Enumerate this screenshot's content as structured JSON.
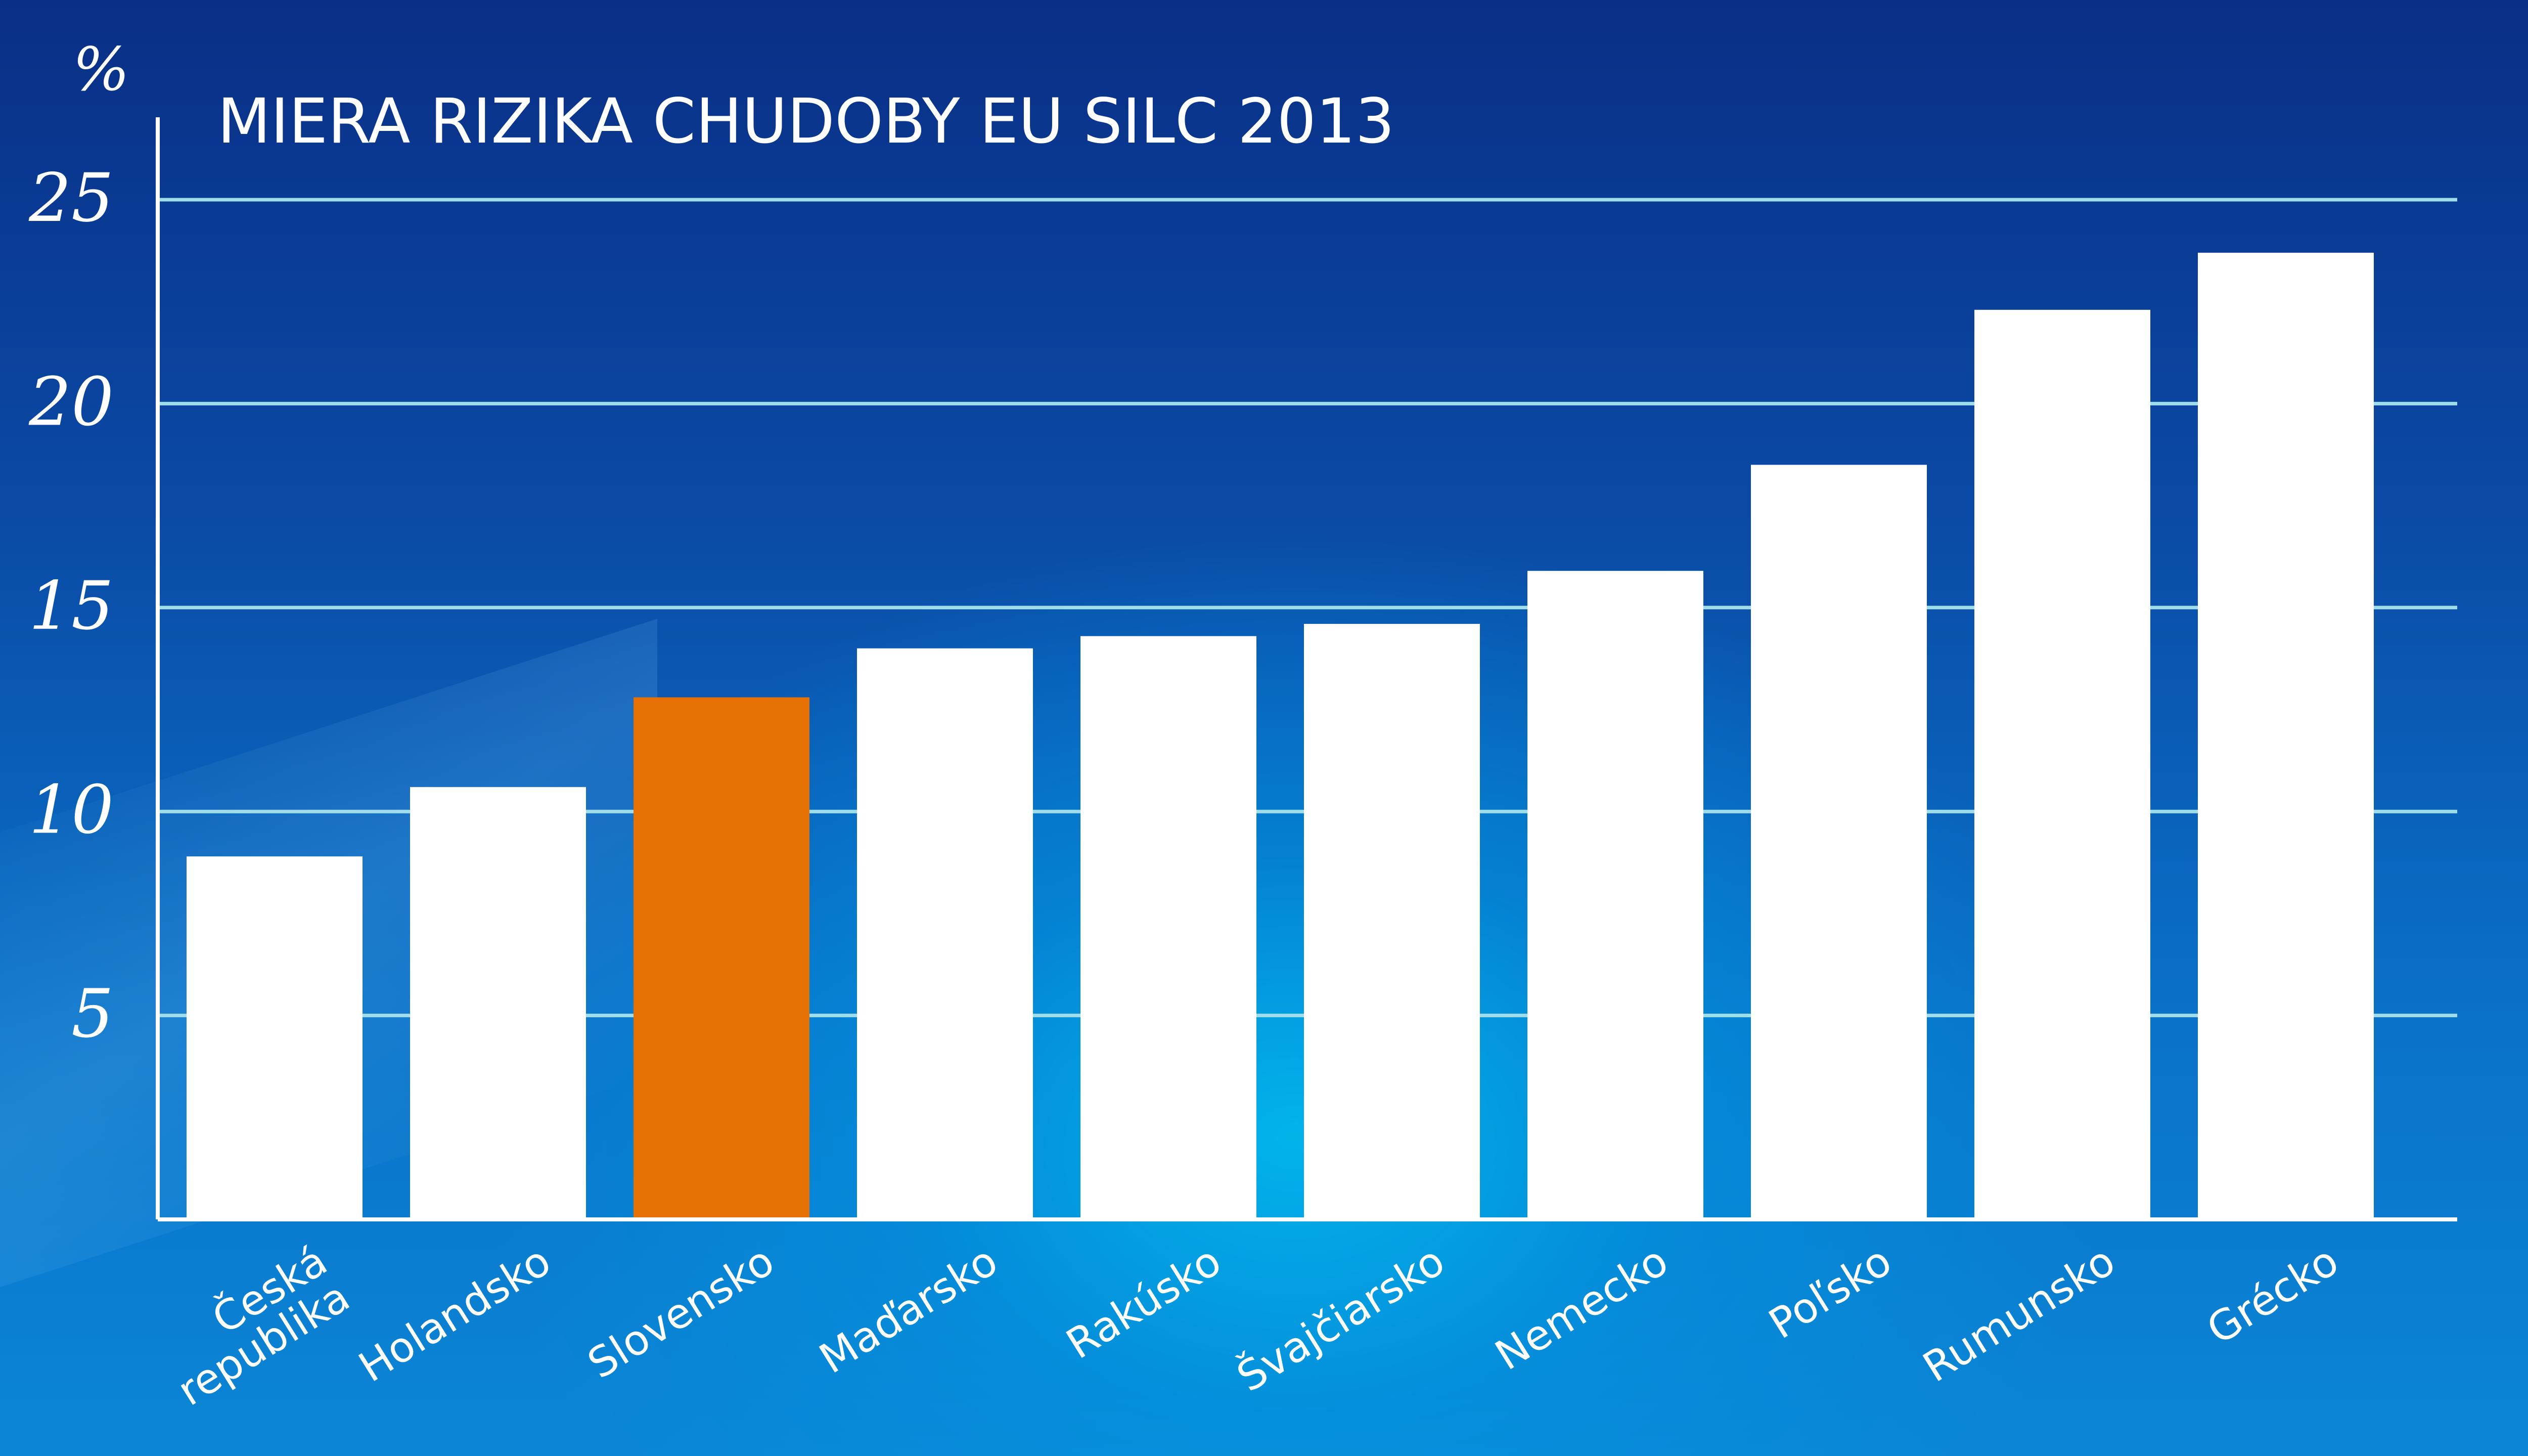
{
  "chart_data": {
    "type": "bar",
    "title": "MIERA RIZIKA CHUDOBY EU SILC 2013",
    "ylabel": "%",
    "xlabel": "",
    "ylim": [
      0,
      25
    ],
    "yticks": [
      "5",
      "10",
      "15",
      "20",
      "25"
    ],
    "ytick_values": [
      5,
      10,
      15,
      20,
      25
    ],
    "grid": true,
    "categories": [
      [
        "Česká",
        "republika"
      ],
      [
        "Holandsko"
      ],
      [
        "Slovensko"
      ],
      [
        "Maďarsko"
      ],
      [
        "Rakúsko"
      ],
      [
        "Švajčiarsko"
      ],
      [
        "Nemecko"
      ],
      [
        "Poľsko"
      ],
      [
        "Rumunsko"
      ],
      [
        "Grécko"
      ]
    ],
    "values": [
      8.9,
      10.6,
      12.8,
      14.0,
      14.3,
      14.6,
      15.9,
      18.5,
      22.3,
      23.7
    ],
    "highlight_index": 2,
    "colors": {
      "bar": "#ffffff",
      "highlight": "#e57003",
      "grid": "#9fdde8",
      "axis": "#ffffff"
    }
  }
}
